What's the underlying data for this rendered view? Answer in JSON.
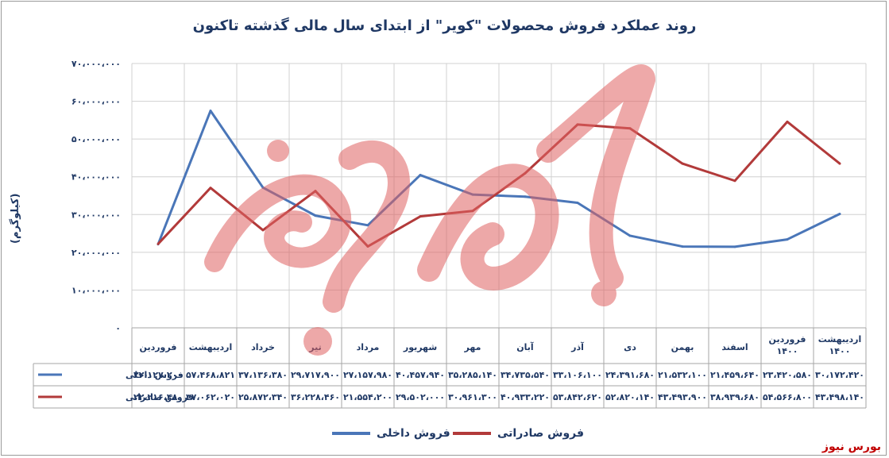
{
  "source": "بورس نیوز",
  "watermark_text": "بورس نیوز",
  "colors": {
    "domestic": "#4a76b8",
    "export": "#b23a3a",
    "grid": "#d0d0d0",
    "text": "#1f3864",
    "watermark": "#e06262"
  },
  "chart_data": {
    "type": "line",
    "title": "روند عملکرد فروش محصولات \"کویر\" از ابتدای سال مالی گذشته تاکنون",
    "ylabel": "(کیلوگرم)",
    "ylim": [
      0,
      70000000
    ],
    "yticks": [
      "۰",
      "۱۰،۰۰۰،۰۰۰",
      "۲۰،۰۰۰،۰۰۰",
      "۳۰،۰۰۰،۰۰۰",
      "۴۰،۰۰۰،۰۰۰",
      "۵۰،۰۰۰،۰۰۰",
      "۶۰،۰۰۰،۰۰۰",
      "۷۰،۰۰۰،۰۰۰"
    ],
    "ytick_values": [
      0,
      10000000,
      20000000,
      30000000,
      40000000,
      50000000,
      60000000,
      70000000
    ],
    "grid": true,
    "legend_position": "bottom",
    "categories": [
      [
        "فروردین"
      ],
      [
        "اردیبهشت"
      ],
      [
        "خرداد"
      ],
      [
        "تیر"
      ],
      [
        "مرداد"
      ],
      [
        "شهریور"
      ],
      [
        "مهر"
      ],
      [
        "آبان"
      ],
      [
        "آذر"
      ],
      [
        "دی"
      ],
      [
        "بهمن"
      ],
      [
        "اسفند"
      ],
      [
        "فروردین",
        "۱۴۰۰"
      ],
      [
        "اردیبهشت",
        "۱۴۰۰"
      ]
    ],
    "series": [
      {
        "name": "فروش داخلی",
        "values": [
          22127200,
          57468821,
          37136380,
          29717900,
          27157980,
          40457940,
          35285140,
          34735540,
          33106100,
          24391680,
          21532100,
          21459640,
          23420580,
          30172420
        ],
        "labels": [
          "۲۲،۱۲۷،۲۰۰",
          "۵۷،۴۶۸،۸۲۱",
          "۳۷،۱۳۶،۳۸۰",
          "۲۹،۷۱۷،۹۰۰",
          "۲۷،۱۵۷،۹۸۰",
          "۴۰،۴۵۷،۹۴۰",
          "۳۵،۲۸۵،۱۴۰",
          "۳۴،۷۳۵،۵۴۰",
          "۳۳،۱۰۶،۱۰۰",
          "۲۴،۳۹۱،۶۸۰",
          "۲۱،۵۳۲،۱۰۰",
          "۲۱،۴۵۹،۶۴۰",
          "۲۳،۴۲۰،۵۸۰",
          "۳۰،۱۷۲،۴۲۰"
        ]
      },
      {
        "name": "فروش صادراتی",
        "values": [
          22216480,
          37062020,
          25872340,
          36228460,
          21554200,
          29502000,
          30961300,
          40933220,
          53842620,
          52820140,
          43493900,
          38939680,
          54566800,
          43498140
        ],
        "labels": [
          "۲۲،۲۱۶،۴۸۰",
          "۳۷،۰۶۲،۰۲۰",
          "۲۵،۸۷۲،۳۴۰",
          "۳۶،۲۲۸،۴۶۰",
          "۲۱،۵۵۴،۲۰۰",
          "۲۹،۵۰۲،۰۰۰",
          "۳۰،۹۶۱،۳۰۰",
          "۴۰،۹۳۳،۲۲۰",
          "۵۳،۸۴۲،۶۲۰",
          "۵۲،۸۲۰،۱۴۰",
          "۴۳،۴۹۳،۹۰۰",
          "۳۸،۹۳۹،۶۸۰",
          "۵۴،۵۶۶،۸۰۰",
          "۴۳،۴۹۸،۱۴۰"
        ]
      }
    ]
  }
}
